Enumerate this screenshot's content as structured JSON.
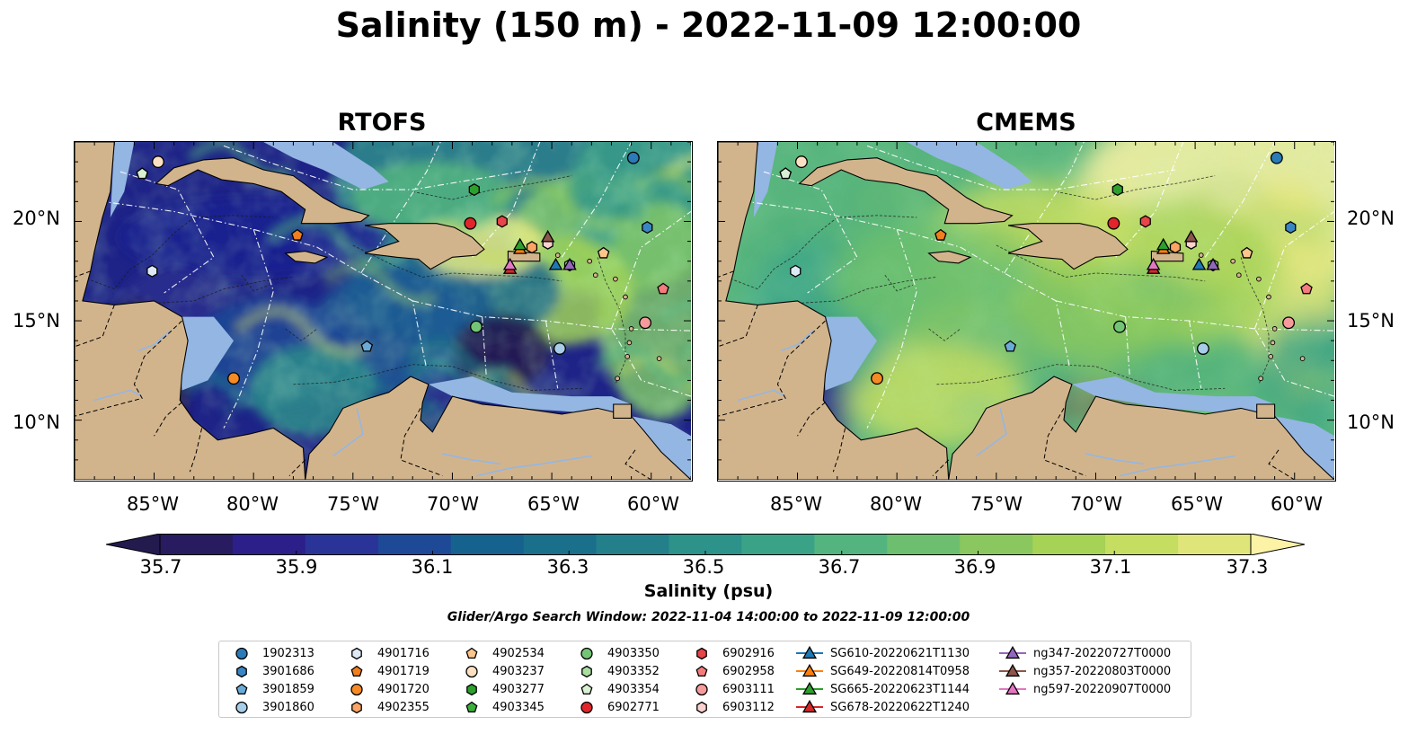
{
  "title": "Salinity (150 m) - 2022-11-09 12:00:00",
  "panels": [
    {
      "name": "rtofs",
      "title": "RTOFS"
    },
    {
      "name": "cmems",
      "title": "CMEMS"
    }
  ],
  "axes": {
    "lat_ticks": [
      "20°N",
      "15°N",
      "10°N"
    ],
    "lon_ticks": [
      "85°W",
      "80°W",
      "75°W",
      "70°W",
      "65°W",
      "60°W"
    ]
  },
  "colorbar": {
    "label": "Salinity (psu)",
    "ticks": [
      "35.7",
      "35.9",
      "36.1",
      "36.3",
      "36.5",
      "36.7",
      "36.9",
      "37.1",
      "37.3"
    ],
    "colors": [
      "#281b5f",
      "#2c1f8a",
      "#2a3498",
      "#1d4997",
      "#14628d",
      "#1a6f8a",
      "#23808a",
      "#2c928a",
      "#3aa387",
      "#53b47f",
      "#6dbf6f",
      "#8ac85f",
      "#a6d256",
      "#c5dd60",
      "#e0e57a"
    ],
    "under_color": "#231a4e",
    "over_color": "#fdf3a6"
  },
  "search_window": "Glider/Argo Search Window: 2022-11-04 14:00:00 to 2022-11-09 12:00:00",
  "legend": {
    "items": [
      {
        "label": "1902313",
        "marker": "circle",
        "color": "#2a7bb7",
        "line": false
      },
      {
        "label": "3901686",
        "marker": "hexagon",
        "color": "#3a86c4",
        "line": false
      },
      {
        "label": "3901859",
        "marker": "pentagon",
        "color": "#6aabd8",
        "line": false
      },
      {
        "label": "3901860",
        "marker": "circle",
        "color": "#a7cde8",
        "line": false
      },
      {
        "label": "4901716",
        "marker": "hexagon",
        "color": "#dde9f5",
        "line": false
      },
      {
        "label": "4901719",
        "marker": "pentagon",
        "color": "#f27f1d",
        "line": false
      },
      {
        "label": "4901720",
        "marker": "circle",
        "color": "#f68a24",
        "line": false
      },
      {
        "label": "4902355",
        "marker": "hexagon",
        "color": "#fba463",
        "line": false
      },
      {
        "label": "4902534",
        "marker": "pentagon",
        "color": "#fdc58c",
        "line": false
      },
      {
        "label": "4903237",
        "marker": "circle",
        "color": "#fde0c2",
        "line": false
      },
      {
        "label": "4903277",
        "marker": "hexagon",
        "color": "#2ca02c",
        "line": false
      },
      {
        "label": "4903345",
        "marker": "pentagon",
        "color": "#3bae3b",
        "line": false
      },
      {
        "label": "4903350",
        "marker": "circle",
        "color": "#74c476",
        "line": false
      },
      {
        "label": "4903352",
        "marker": "hexagon",
        "color": "#a9dea0",
        "line": false
      },
      {
        "label": "4903354",
        "marker": "pentagon",
        "color": "#d9f0d3",
        "line": false
      },
      {
        "label": "6902771",
        "marker": "circle",
        "color": "#e0262a",
        "line": false
      },
      {
        "label": "6902916",
        "marker": "hexagon",
        "color": "#e64549",
        "line": false
      },
      {
        "label": "6902958",
        "marker": "pentagon",
        "color": "#f47c7c",
        "line": false
      },
      {
        "label": "6903111",
        "marker": "circle",
        "color": "#f59b9b",
        "line": false
      },
      {
        "label": "6903112",
        "marker": "hexagon",
        "color": "#fcd2d0",
        "line": false
      },
      {
        "label": "SG610-20220621T1130",
        "marker": "triangle",
        "color": "#1f77b4",
        "line": true
      },
      {
        "label": "SG649-20220814T0958",
        "marker": "triangle",
        "color": "#ff7f0e",
        "line": true
      },
      {
        "label": "SG665-20220623T1144",
        "marker": "triangle",
        "color": "#2ca02c",
        "line": true
      },
      {
        "label": "SG678-20220622T1240",
        "marker": "triangle",
        "color": "#d62728",
        "line": true
      },
      {
        "label": "ng347-20220727T0000",
        "marker": "triangle",
        "color": "#9467bd",
        "line": true
      },
      {
        "label": "ng357-20220803T0000",
        "marker": "triangle",
        "color": "#8c564b",
        "line": true
      },
      {
        "label": "ng597-20220907T0000",
        "marker": "triangle",
        "color": "#e377c2",
        "line": true
      }
    ]
  },
  "platforms": [
    {
      "id": "1902313",
      "lon": -60.9,
      "lat": 23.2
    },
    {
      "id": "3901686",
      "lon": -60.2,
      "lat": 19.7
    },
    {
      "id": "3901859",
      "lon": -74.3,
      "lat": 13.7
    },
    {
      "id": "3901860",
      "lon": -64.6,
      "lat": 13.6
    },
    {
      "id": "4901716",
      "lon": -85.1,
      "lat": 17.5
    },
    {
      "id": "4901719",
      "lon": -77.8,
      "lat": 19.3
    },
    {
      "id": "4901720",
      "lon": -81.0,
      "lat": 12.1
    },
    {
      "id": "4902355",
      "lon": -66.0,
      "lat": 18.7
    },
    {
      "id": "4902534",
      "lon": -62.4,
      "lat": 18.4
    },
    {
      "id": "4903237",
      "lon": -84.8,
      "lat": 23.0
    },
    {
      "id": "4903277",
      "lon": -68.9,
      "lat": 21.6
    },
    {
      "id": "4903345",
      "lon": -85.6,
      "lat": 22.4
    },
    {
      "id": "4903350",
      "lon": -68.8,
      "lat": 14.7
    },
    {
      "id": "4903352",
      "lon": -64.1,
      "lat": 17.8
    },
    {
      "id": "4903354",
      "lon": -85.6,
      "lat": 22.4
    },
    {
      "id": "6902771",
      "lon": -69.1,
      "lat": 19.9
    },
    {
      "id": "6902916",
      "lon": -67.5,
      "lat": 20.0
    },
    {
      "id": "6902958",
      "lon": -59.4,
      "lat": 16.6
    },
    {
      "id": "6903111",
      "lon": -60.3,
      "lat": 14.9
    },
    {
      "id": "6903112",
      "lon": -65.2,
      "lat": 18.9
    },
    {
      "id": "SG610-20220621T1130",
      "lon": -64.8,
      "lat": 17.8
    },
    {
      "id": "SG649-20220814T0958",
      "lon": -66.6,
      "lat": 18.6
    },
    {
      "id": "SG665-20220623T1144",
      "lon": -66.6,
      "lat": 18.8
    },
    {
      "id": "SG678-20220622T1240",
      "lon": -67.1,
      "lat": 17.6
    },
    {
      "id": "ng347-20220727T0000",
      "lon": -64.1,
      "lat": 17.8
    },
    {
      "id": "ng357-20220803T0000",
      "lon": -65.2,
      "lat": 19.2
    },
    {
      "id": "ng597-20220907T0000",
      "lon": -67.1,
      "lat": 17.8
    }
  ]
}
